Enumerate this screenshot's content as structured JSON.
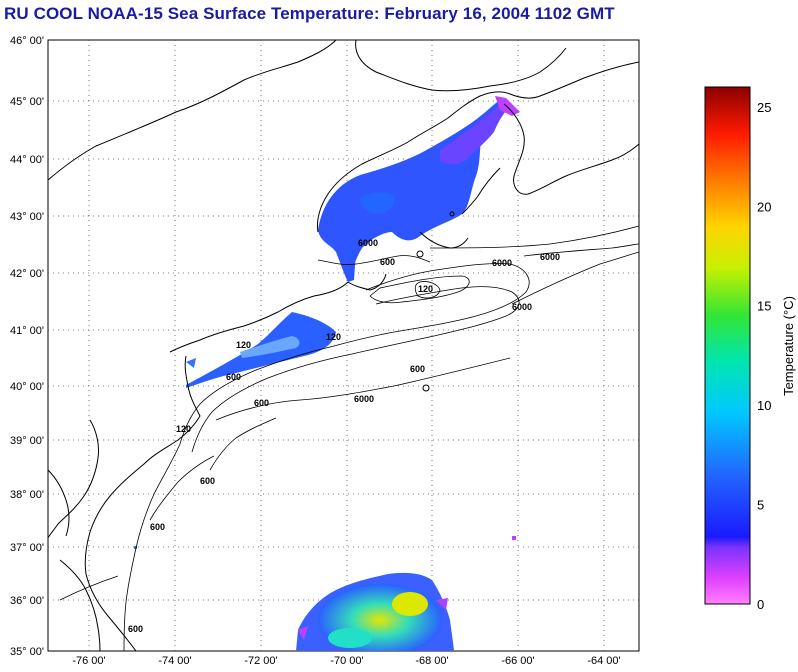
{
  "title": "RU COOL  NOAA-15  Sea Surface Temperature:  February 16, 2004 1102 GMT",
  "chart_data": {
    "type": "heatmap",
    "map": "Sea surface temperature, Mid-Atlantic Bight / Gulf of Maine",
    "lat_range": [
      35,
      46
    ],
    "lon_range": [
      -77,
      -63
    ],
    "lat_ticks": [
      "46° 00'",
      "45° 00'",
      "44° 00'",
      "43° 00'",
      "42° 00'",
      "41° 00'",
      "40° 00'",
      "39° 00'",
      "38° 00'",
      "37° 00'",
      "36° 00'",
      "35° 00'"
    ],
    "lon_ticks": [
      "-76 00'",
      "-74 00'",
      "-72 00'",
      "-70 00'",
      "-68 00'",
      "-66 00'",
      "-64 00'"
    ],
    "contour_labels": [
      "120",
      "600",
      "6000",
      "600",
      "6000",
      "120",
      "600",
      "6000",
      "600",
      "6000",
      "120",
      "600",
      "6000",
      "600",
      "600",
      "120"
    ],
    "colorbar": {
      "label": "Temperature (°C)",
      "min": 0,
      "max": 26,
      "ticks": [
        "0",
        "5",
        "10",
        "15",
        "20",
        "25"
      ]
    },
    "palette": {
      "title_color": "#1a1aa6",
      "cold": "#ff66ff",
      "cool": "#2a4cff",
      "mid": "#00e0ff",
      "warm": "#ffe000",
      "hot": "#b00000"
    }
  }
}
